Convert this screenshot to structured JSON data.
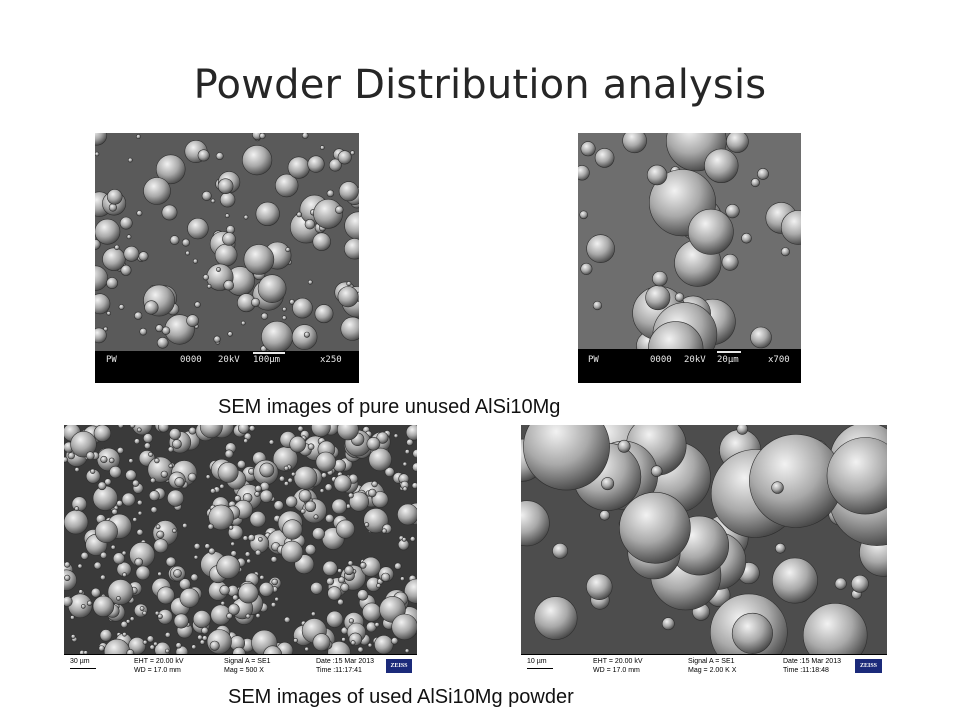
{
  "slide": {
    "title": "Powder Distribution analysis",
    "caption_top": "SEM images of pure unused AlSi10Mg",
    "caption_bottom": "SEM images of used AlSi10Mg powder"
  },
  "images": {
    "top_left": {
      "pw": "PW",
      "code": "0000",
      "kv": "20kV",
      "scale": "100µm",
      "mag": "x250"
    },
    "top_right": {
      "pw": "PW",
      "code": "0000",
      "kv": "20kV",
      "scale": "20µm",
      "mag": "x700"
    },
    "bottom_left": {
      "scale": "30 µm",
      "eht": "EHT = 20.00 kV",
      "wd": "WD = 17.0 mm",
      "signal": "Signal A = SE1",
      "mag": "Mag =  500 X",
      "date": "Date :15 Mar 2013",
      "time": "Time :11:17:41",
      "logo": "ZEISS"
    },
    "bottom_right": {
      "scale": "10 µm",
      "eht": "EHT = 20.00 kV",
      "wd": "WD = 17.0 mm",
      "signal": "Signal A = SE1",
      "mag": "Mag =  2.00 K X",
      "date": "Date :15 Mar 2013",
      "time": "Time :11:18:48",
      "logo": "ZEISS"
    }
  }
}
